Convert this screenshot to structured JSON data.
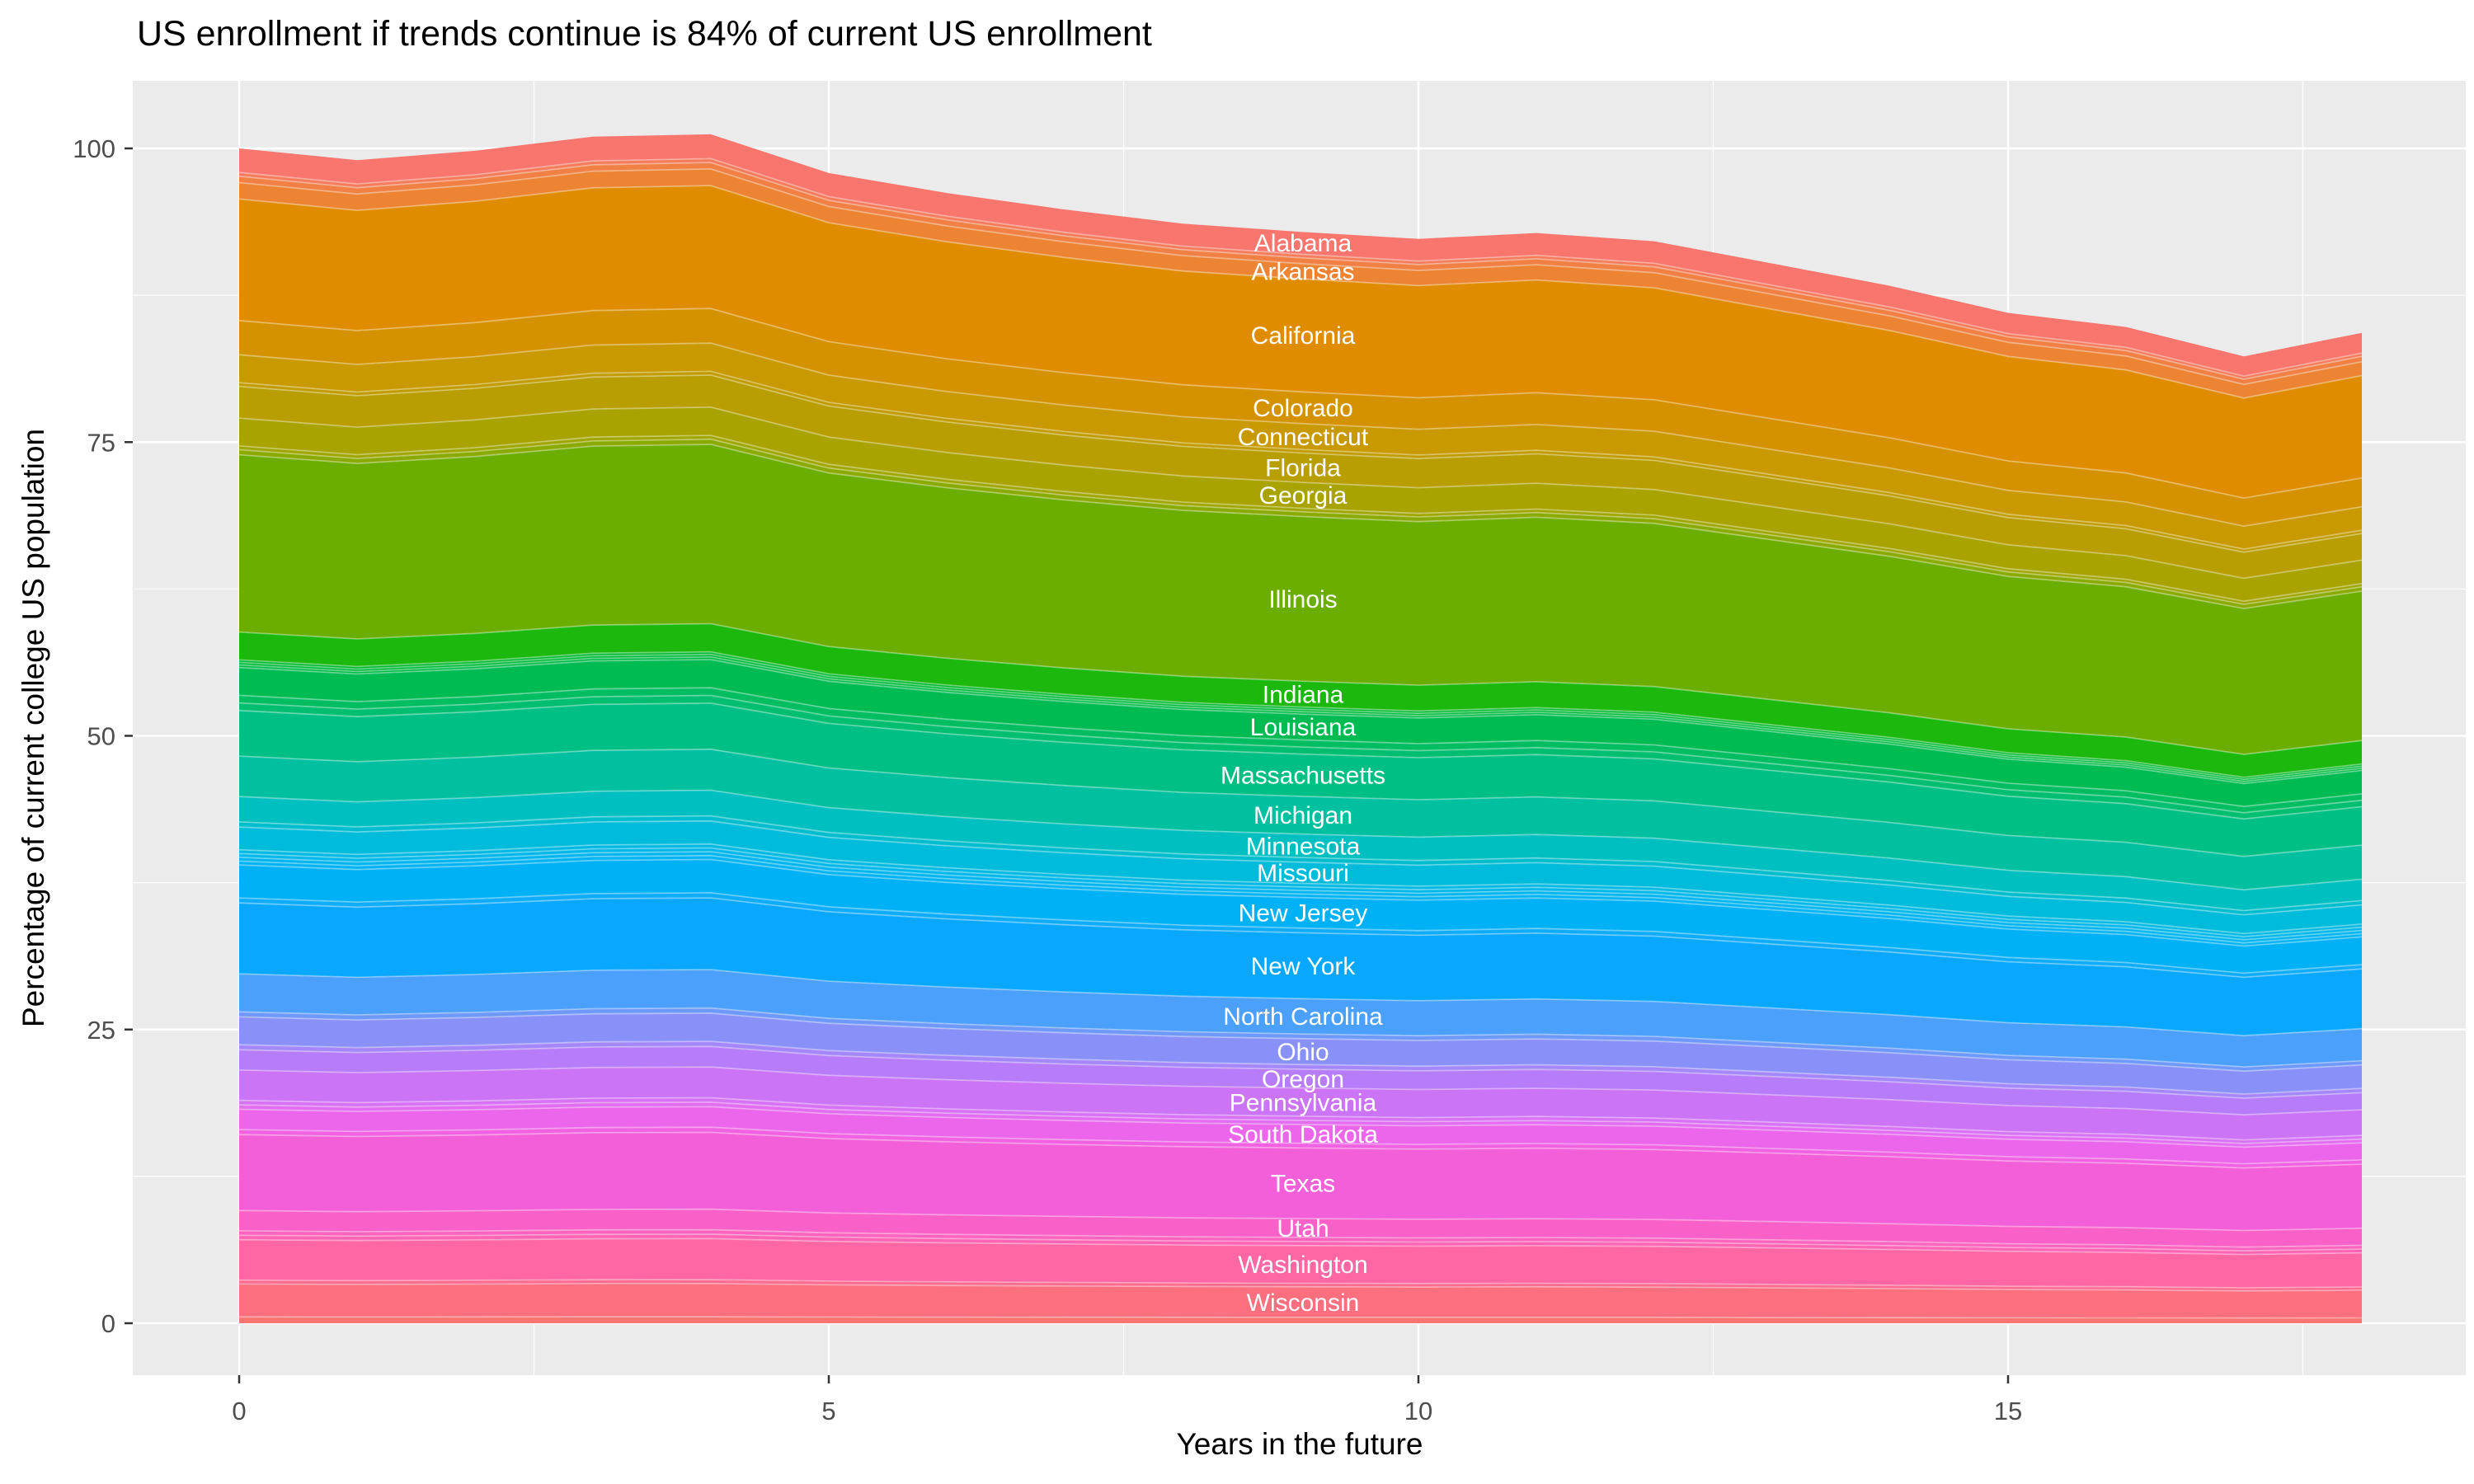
{
  "title": "US enrollment if trends continue is 84% of current US enrollment",
  "axes": {
    "x": {
      "label": "Years in the future",
      "ticks": [
        {
          "value": 0,
          "label": "0"
        },
        {
          "value": 5,
          "label": "5"
        },
        {
          "value": 10,
          "label": "10"
        },
        {
          "value": 15,
          "label": "15"
        }
      ],
      "minor": [
        2.5,
        7.5,
        12.5,
        17.5
      ]
    },
    "y": {
      "label": "Percentage of current college US population",
      "ticks": [
        {
          "value": 0,
          "label": "0"
        },
        {
          "value": 25,
          "label": "25"
        },
        {
          "value": 50,
          "label": "50"
        },
        {
          "value": 75,
          "label": "75"
        },
        {
          "value": 100,
          "label": "100"
        }
      ],
      "minor": [
        12.5,
        37.5,
        62.5,
        87.5
      ]
    }
  },
  "style": {
    "panel_bg": "#EBEBEB",
    "grid_color": "#FFFFFF",
    "tick_text_color": "#4D4D4D",
    "tick_mark_color": "#333333",
    "band_label_color": "#FFFFFF",
    "band_separator": "rgba(255,255,255,0.35)"
  },
  "chart_data": {
    "type": "area",
    "stacked": true,
    "title": "US enrollment if trends continue is 84% of current US enrollment",
    "xlabel": "Years in the future",
    "ylabel": "Percentage of current college US population",
    "xlim": [
      -0.9,
      18.9
    ],
    "ylim": [
      -5,
      106
    ],
    "grid": true,
    "legend": "none (bands labeled in-plot)",
    "x_years": [
      0,
      1,
      2,
      3,
      4,
      5,
      6,
      7,
      8,
      9,
      10,
      11,
      12,
      13,
      14,
      15,
      16,
      17,
      18
    ],
    "total_pct_by_year": [
      100.0,
      99.0,
      99.8,
      101.0,
      101.2,
      97.9,
      96.2,
      94.8,
      93.6,
      92.9,
      92.3,
      92.8,
      92.1,
      90.2,
      88.3,
      86.0,
      84.8,
      82.3,
      84.3
    ],
    "final_total_pct": 84,
    "band_label_x_year": 9,
    "stack_order": "top-to-bottom",
    "bands": [
      {
        "name": "Alabama",
        "labeled": true,
        "color": "#F8766D",
        "width_pct_at_year9": 1.9
      },
      {
        "name": "",
        "labeled": false,
        "color": "#F47B5B",
        "width_pct_at_year9": 0.3
      },
      {
        "name": "",
        "labeled": false,
        "color": "#F08044",
        "width_pct_at_year9": 0.5
      },
      {
        "name": "Arkansas",
        "labeled": true,
        "color": "#EC8434",
        "width_pct_at_year9": 1.3
      },
      {
        "name": "California",
        "labeled": true,
        "color": "#E08C00",
        "width_pct_at_year9": 9.6
      },
      {
        "name": "Colorado",
        "labeled": true,
        "color": "#D59200",
        "width_pct_at_year9": 2.7
      },
      {
        "name": "Connecticut",
        "labeled": true,
        "color": "#C89900",
        "width_pct_at_year9": 2.2
      },
      {
        "name": "",
        "labeled": false,
        "color": "#C09C00",
        "width_pct_at_year9": 0.3
      },
      {
        "name": "Florida",
        "labeled": true,
        "color": "#B89E00",
        "width_pct_at_year9": 2.5
      },
      {
        "name": "Georgia",
        "labeled": true,
        "color": "#A9A300",
        "width_pct_at_year9": 2.2
      },
      {
        "name": "",
        "labeled": false,
        "color": "#9FA600",
        "width_pct_at_year9": 0.3
      },
      {
        "name": "",
        "labeled": false,
        "color": "#8BAA00",
        "width_pct_at_year9": 0.4
      },
      {
        "name": "Illinois",
        "labeled": true,
        "color": "#6CAE00",
        "width_pct_at_year9": 14.0
      },
      {
        "name": "Indiana",
        "labeled": true,
        "color": "#1CB80E",
        "width_pct_at_year9": 2.2
      },
      {
        "name": "",
        "labeled": false,
        "color": "#00B92E",
        "width_pct_at_year9": 0.2
      },
      {
        "name": "",
        "labeled": false,
        "color": "#00BA3B",
        "width_pct_at_year9": 0.2
      },
      {
        "name": "",
        "labeled": false,
        "color": "#00BB45",
        "width_pct_at_year9": 0.2
      },
      {
        "name": "Louisiana",
        "labeled": true,
        "color": "#00BB52",
        "width_pct_at_year9": 2.2
      },
      {
        "name": "",
        "labeled": false,
        "color": "#00BD62",
        "width_pct_at_year9": 0.6
      },
      {
        "name": "",
        "labeled": false,
        "color": "#00BE6F",
        "width_pct_at_year9": 0.6
      },
      {
        "name": "Massachusetts",
        "labeled": true,
        "color": "#00BF85",
        "width_pct_at_year9": 3.6
      },
      {
        "name": "Michigan",
        "labeled": true,
        "color": "#00C0A0",
        "width_pct_at_year9": 3.2
      },
      {
        "name": "Minnesota",
        "labeled": true,
        "color": "#00BFC0",
        "width_pct_at_year9": 2.0
      },
      {
        "name": "",
        "labeled": false,
        "color": "#00BDCE",
        "width_pct_at_year9": 0.4
      },
      {
        "name": "Missouri",
        "labeled": true,
        "color": "#00BBDA",
        "width_pct_at_year9": 1.8
      },
      {
        "name": "",
        "labeled": false,
        "color": "#00B9E2",
        "width_pct_at_year9": 0.3
      },
      {
        "name": "",
        "labeled": false,
        "color": "#00B7E9",
        "width_pct_at_year9": 0.3
      },
      {
        "name": "",
        "labeled": false,
        "color": "#00B5EE",
        "width_pct_at_year9": 0.3
      },
      {
        "name": "",
        "labeled": false,
        "color": "#00B3F2",
        "width_pct_at_year9": 0.3
      },
      {
        "name": "New Jersey",
        "labeled": true,
        "color": "#00B1F5",
        "width_pct_at_year9": 2.6
      },
      {
        "name": "",
        "labeled": false,
        "color": "#0FACFA",
        "width_pct_at_year9": 0.4
      },
      {
        "name": "New York",
        "labeled": true,
        "color": "#09A8FE",
        "width_pct_at_year9": 5.6
      },
      {
        "name": "North Carolina",
        "labeled": true,
        "color": "#4BA0FB",
        "width_pct_at_year9": 3.0
      },
      {
        "name": "",
        "labeled": false,
        "color": "#6E99FA",
        "width_pct_at_year9": 0.4
      },
      {
        "name": "Ohio",
        "labeled": true,
        "color": "#8991F9",
        "width_pct_at_year9": 2.2
      },
      {
        "name": "",
        "labeled": false,
        "color": "#A487FA",
        "width_pct_at_year9": 0.4
      },
      {
        "name": "Oregon",
        "labeled": true,
        "color": "#B77CFA",
        "width_pct_at_year9": 1.6
      },
      {
        "name": "Pennsylvania",
        "labeled": true,
        "color": "#CC74F6",
        "width_pct_at_year9": 2.4
      },
      {
        "name": "",
        "labeled": false,
        "color": "#D872F4",
        "width_pct_at_year9": 0.35
      },
      {
        "name": "",
        "labeled": false,
        "color": "#E26DF0",
        "width_pct_at_year9": 0.35
      },
      {
        "name": "South Dakota",
        "labeled": true,
        "color": "#EB66EA",
        "width_pct_at_year9": 1.6
      },
      {
        "name": "",
        "labeled": false,
        "color": "#F062E2",
        "width_pct_at_year9": 0.4
      },
      {
        "name": "Texas",
        "labeled": true,
        "color": "#F35FD9",
        "width_pct_at_year9": 6.0
      },
      {
        "name": "Utah",
        "labeled": true,
        "color": "#F961C9",
        "width_pct_at_year9": 1.6
      },
      {
        "name": "",
        "labeled": false,
        "color": "#FB63BE",
        "width_pct_at_year9": 0.35
      },
      {
        "name": "",
        "labeled": false,
        "color": "#FD64B4",
        "width_pct_at_year9": 0.35
      },
      {
        "name": "Washington",
        "labeled": true,
        "color": "#FF66A4",
        "width_pct_at_year9": 3.2
      },
      {
        "name": "",
        "labeled": false,
        "color": "#FD6B90",
        "width_pct_at_year9": 0.3
      },
      {
        "name": "Wisconsin",
        "labeled": true,
        "color": "#FB6F7F",
        "width_pct_at_year9": 2.6
      },
      {
        "name": "",
        "labeled": false,
        "color": "#F97471",
        "width_pct_at_year9": 0.5
      }
    ]
  }
}
